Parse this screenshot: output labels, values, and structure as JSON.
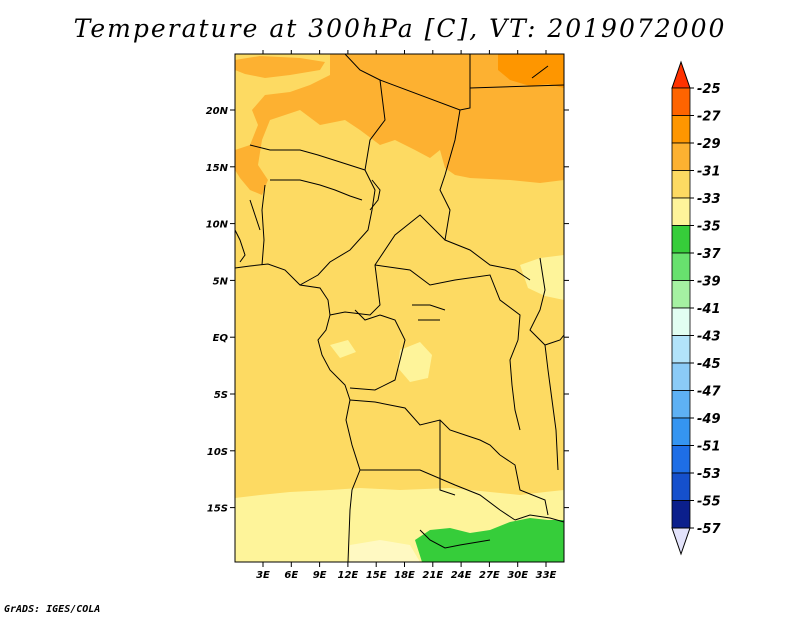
{
  "title": "Temperature at 300hPa [C], VT: 2019072000",
  "credit": "GrADS: IGES/COLA",
  "map": {
    "lon_labels": [
      "3E",
      "6E",
      "9E",
      "12E",
      "15E",
      "18E",
      "21E",
      "24E",
      "27E",
      "30E",
      "33E"
    ],
    "lat_labels": [
      "20N",
      "15N",
      "10N",
      "5N",
      "EQ",
      "5S",
      "10S",
      "15S"
    ]
  },
  "colorbar": {
    "labels": [
      "-25",
      "-27",
      "-29",
      "-31",
      "-33",
      "-35",
      "-37",
      "-39",
      "-41",
      "-43",
      "-45",
      "-47",
      "-49",
      "-51",
      "-53",
      "-55",
      "-57"
    ],
    "colors": [
      "#ff3200",
      "#fe6400",
      "#fe9600",
      "#fdb131",
      "#fdda62",
      "#fef49a",
      "#36cd3a",
      "#68e16e",
      "#a5f1a2",
      "#e2fef2",
      "#b2e3fa",
      "#8bcbf7",
      "#5eb1f4",
      "#3595f1",
      "#1e6ee6",
      "#1550cc",
      "#0b1f8c",
      "#e3e3fb"
    ]
  },
  "colors": {
    "c29": "#fdb131",
    "c31": "#fdda62",
    "c33": "#fef49a",
    "c35": "#fff9c2",
    "c37": "#36cd3a",
    "border": "#000000"
  }
}
